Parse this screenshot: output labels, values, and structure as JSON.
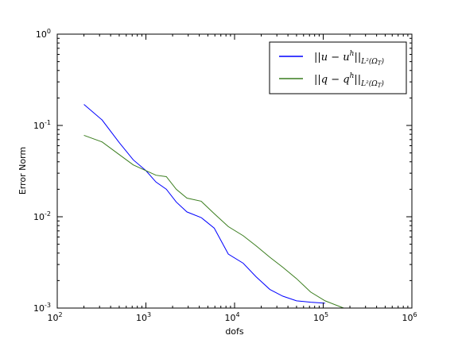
{
  "chart_data": {
    "type": "line",
    "xlabel": "dofs",
    "ylabel": "Error Norm",
    "xscale": "log",
    "yscale": "log",
    "xlim": [
      100,
      1000000
    ],
    "ylim": [
      0.001,
      1
    ],
    "grid": false,
    "legend_position": "top-right",
    "x_ticks": [
      {
        "base": "10",
        "exp": "2"
      },
      {
        "base": "10",
        "exp": "3"
      },
      {
        "base": "10",
        "exp": "4"
      },
      {
        "base": "10",
        "exp": "5"
      },
      {
        "base": "10",
        "exp": "6"
      }
    ],
    "y_ticks": [
      {
        "base": "10",
        "exp": "0"
      },
      {
        "base": "10",
        "exp": "-1"
      },
      {
        "base": "10",
        "exp": "-2"
      },
      {
        "base": "10",
        "exp": "-3"
      }
    ],
    "series": [
      {
        "name": "||u − u^h||_{L²(Ω_T)}",
        "legend": {
          "main": "||u − u",
          "sup": "h",
          "close": "||",
          "sub": "L²(Ω",
          "subsub": "T",
          "subclose": ")"
        },
        "color": "#0000ff",
        "x": [
          200,
          320,
          500,
          720,
          1000,
          1300,
          1700,
          2200,
          2900,
          4200,
          5900,
          8500,
          12500,
          17500,
          25000,
          35000,
          50000,
          72000,
          105000
        ],
        "y": [
          0.17,
          0.115,
          0.065,
          0.042,
          0.032,
          0.024,
          0.02,
          0.0145,
          0.0113,
          0.0098,
          0.0075,
          0.0039,
          0.0031,
          0.0022,
          0.0016,
          0.00135,
          0.0012,
          0.00116,
          0.00113
        ]
      },
      {
        "name": "||q − q^h||_{L²(Ω_T)}",
        "legend": {
          "main": "||q − q",
          "sup": "h",
          "close": "||",
          "sub": "L²(Ω",
          "subsub": "T",
          "subclose": ")"
        },
        "color": "#3a7d1e",
        "x": [
          200,
          320,
          500,
          720,
          1000,
          1300,
          1700,
          2200,
          2900,
          4200,
          5900,
          8500,
          12500,
          17500,
          25000,
          35000,
          50000,
          72000,
          105000,
          170000
        ],
        "y": [
          0.078,
          0.066,
          0.048,
          0.037,
          0.032,
          0.0285,
          0.0275,
          0.02,
          0.016,
          0.0148,
          0.0108,
          0.0078,
          0.0062,
          0.0048,
          0.0036,
          0.0028,
          0.0021,
          0.0015,
          0.0012,
          0.001
        ]
      }
    ]
  }
}
